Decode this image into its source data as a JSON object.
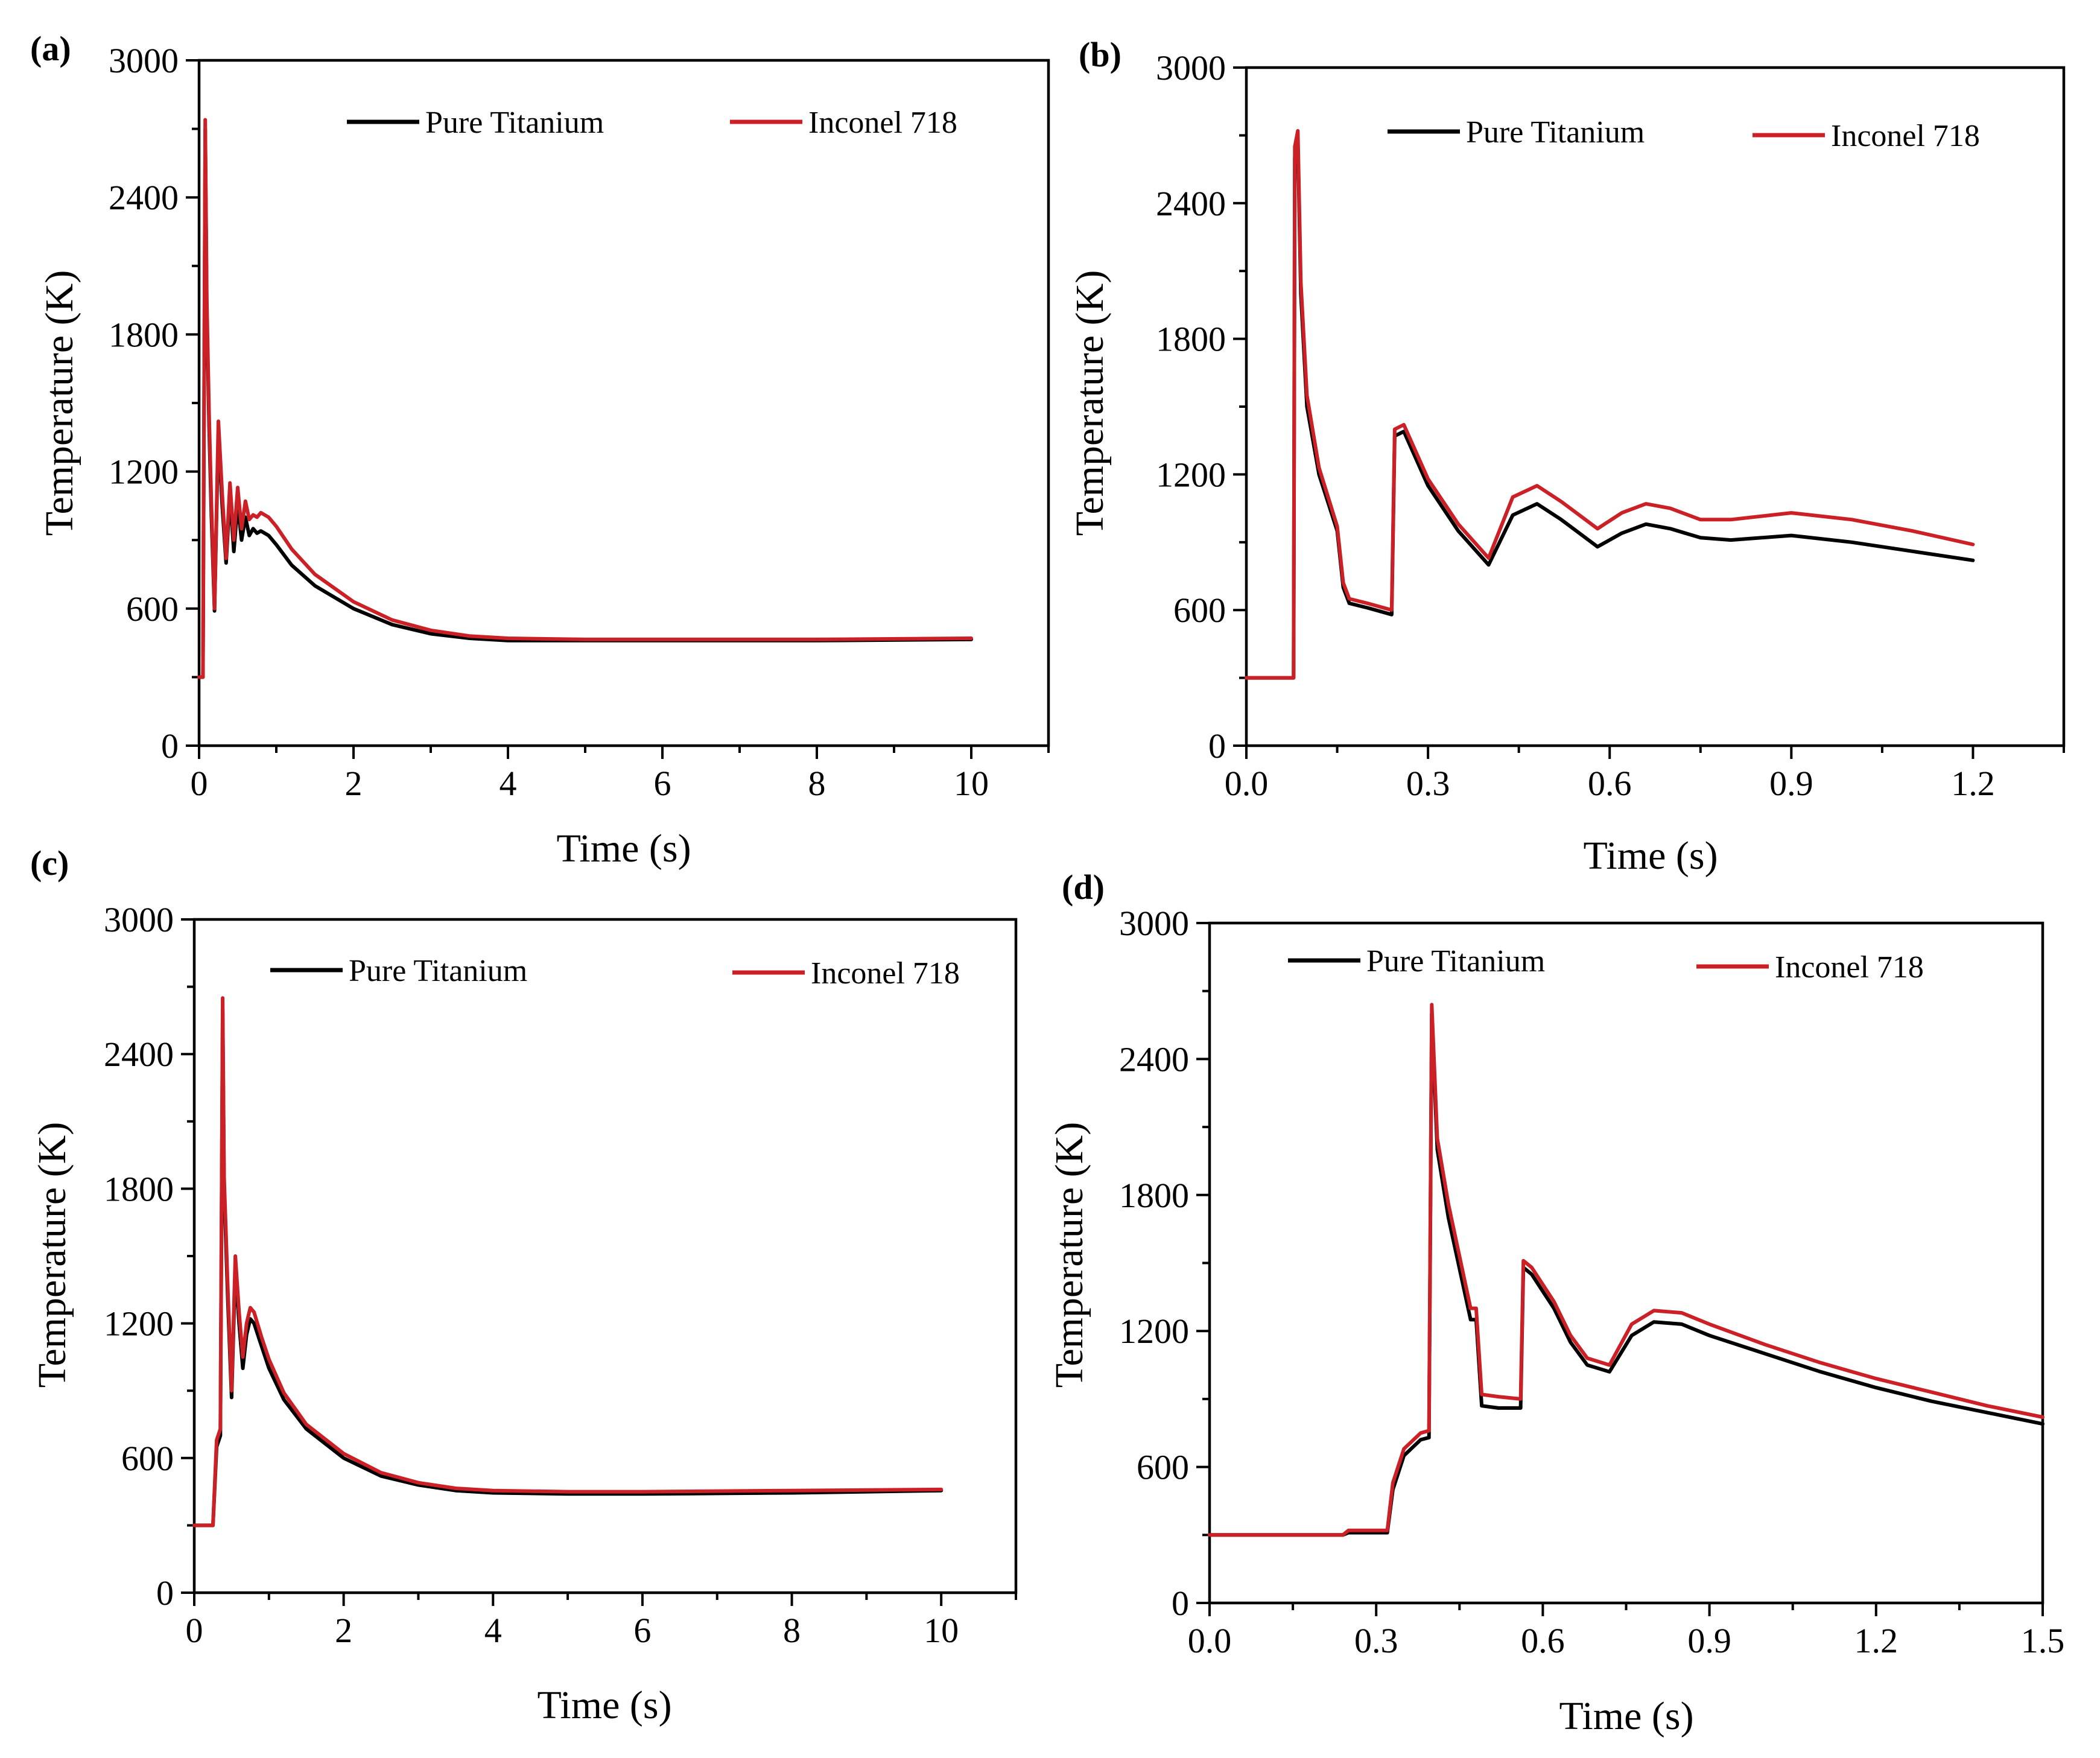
{
  "colors": {
    "pure_titanium": "#000000",
    "inconel_718": "#cc2027"
  },
  "chart_data": [
    {
      "panel": "(a)",
      "type": "line",
      "xlabel": "Time (s)",
      "ylabel": "Temperature (K)",
      "xlim": [
        0,
        11
      ],
      "ylim": [
        0,
        3000
      ],
      "xticks": [
        0,
        2,
        4,
        6,
        8,
        10
      ],
      "xtick_labels": [
        "0",
        "2",
        "4",
        "6",
        "8",
        "10"
      ],
      "yticks": [
        0,
        600,
        1200,
        1800,
        2400,
        3000
      ],
      "ytick_labels": [
        "0",
        "600",
        "1200",
        "1800",
        "2400",
        "3000"
      ],
      "legend": "top",
      "series": [
        {
          "name": "Pure Titanium",
          "color": "#000000",
          "x": [
            0,
            0.05,
            0.08,
            0.1,
            0.13,
            0.16,
            0.2,
            0.25,
            0.3,
            0.35,
            0.4,
            0.45,
            0.5,
            0.55,
            0.6,
            0.65,
            0.7,
            0.75,
            0.8,
            0.9,
            1.0,
            1.2,
            1.5,
            2.0,
            2.5,
            3.0,
            3.5,
            4.0,
            5.0,
            6.0,
            8.0,
            10.0
          ],
          "y": [
            300,
            300,
            2700,
            1900,
            1400,
            1000,
            590,
            1380,
            1050,
            800,
            1100,
            850,
            1060,
            900,
            1000,
            920,
            950,
            930,
            940,
            920,
            880,
            790,
            700,
            600,
            530,
            490,
            470,
            460,
            460,
            460,
            460,
            465
          ]
        },
        {
          "name": "Inconel 718",
          "color": "#cc2027",
          "x": [
            0,
            0.05,
            0.08,
            0.1,
            0.13,
            0.16,
            0.2,
            0.25,
            0.3,
            0.35,
            0.4,
            0.45,
            0.5,
            0.55,
            0.6,
            0.65,
            0.7,
            0.75,
            0.8,
            0.9,
            1.0,
            1.2,
            1.5,
            2.0,
            2.5,
            3.0,
            3.5,
            4.0,
            5.0,
            6.0,
            8.0,
            10.0
          ],
          "y": [
            300,
            300,
            2740,
            1950,
            1450,
            1050,
            600,
            1420,
            1100,
            820,
            1150,
            900,
            1130,
            950,
            1070,
            990,
            1010,
            1000,
            1020,
            1000,
            960,
            860,
            750,
            630,
            550,
            505,
            480,
            470,
            465,
            465,
            465,
            470
          ]
        }
      ]
    },
    {
      "panel": "(b)",
      "type": "line",
      "xlabel": "Time (s)",
      "ylabel": "Temperature (K)",
      "xlim": [
        0,
        1.35
      ],
      "ylim": [
        0,
        3000
      ],
      "xticks": [
        0,
        0.3,
        0.6,
        0.9,
        1.2
      ],
      "xtick_labels": [
        "0.0",
        "0.3",
        "0.6",
        "0.9",
        "1.2"
      ],
      "yticks": [
        0,
        600,
        1200,
        1800,
        2400,
        3000
      ],
      "ytick_labels": [
        "0",
        "600",
        "1200",
        "1800",
        "2400",
        "3000"
      ],
      "legend": "top",
      "series": [
        {
          "name": "Pure Titanium",
          "color": "#000000",
          "x": [
            0,
            0.078,
            0.08,
            0.085,
            0.09,
            0.1,
            0.12,
            0.15,
            0.16,
            0.17,
            0.2,
            0.24,
            0.245,
            0.26,
            0.3,
            0.35,
            0.4,
            0.44,
            0.48,
            0.52,
            0.58,
            0.62,
            0.66,
            0.7,
            0.75,
            0.8,
            0.9,
            1.0,
            1.1,
            1.2
          ],
          "y": [
            300,
            300,
            2600,
            2680,
            2000,
            1500,
            1200,
            950,
            700,
            630,
            610,
            580,
            1370,
            1390,
            1150,
            950,
            800,
            1020,
            1070,
            1000,
            880,
            940,
            980,
            960,
            920,
            910,
            930,
            900,
            860,
            820
          ]
        },
        {
          "name": "Inconel 718",
          "color": "#cc2027",
          "x": [
            0,
            0.078,
            0.08,
            0.085,
            0.09,
            0.1,
            0.12,
            0.15,
            0.16,
            0.17,
            0.2,
            0.24,
            0.245,
            0.26,
            0.3,
            0.35,
            0.4,
            0.44,
            0.48,
            0.52,
            0.58,
            0.62,
            0.66,
            0.7,
            0.75,
            0.8,
            0.9,
            1.0,
            1.1,
            1.2
          ],
          "y": [
            300,
            300,
            2650,
            2720,
            2050,
            1550,
            1230,
            970,
            720,
            650,
            630,
            600,
            1400,
            1420,
            1180,
            980,
            830,
            1100,
            1150,
            1080,
            960,
            1030,
            1070,
            1050,
            1000,
            1000,
            1030,
            1000,
            950,
            890
          ]
        }
      ]
    },
    {
      "panel": "(c)",
      "type": "line",
      "xlabel": "Time (s)",
      "ylabel": "Temperature (K)",
      "xlim": [
        0,
        11
      ],
      "ylim": [
        0,
        3000
      ],
      "xticks": [
        0,
        2,
        4,
        6,
        8,
        10
      ],
      "xtick_labels": [
        "0",
        "2",
        "4",
        "6",
        "8",
        "10"
      ],
      "yticks": [
        0,
        600,
        1200,
        1800,
        2400,
        3000
      ],
      "ytick_labels": [
        "0",
        "600",
        "1200",
        "1800",
        "2400",
        "3000"
      ],
      "legend": "top",
      "series": [
        {
          "name": "Pure Titanium",
          "color": "#000000",
          "x": [
            0,
            0.25,
            0.3,
            0.35,
            0.38,
            0.4,
            0.45,
            0.5,
            0.55,
            0.6,
            0.65,
            0.7,
            0.75,
            0.8,
            0.9,
            1.0,
            1.2,
            1.5,
            2.0,
            2.5,
            3.0,
            3.5,
            4.0,
            5.0,
            6.0,
            8.0,
            10.0
          ],
          "y": [
            300,
            300,
            650,
            700,
            2600,
            1800,
            1300,
            870,
            1450,
            1200,
            1000,
            1150,
            1220,
            1200,
            1100,
            1000,
            860,
            730,
            600,
            520,
            480,
            455,
            445,
            440,
            440,
            445,
            455
          ]
        },
        {
          "name": "Inconel 718",
          "color": "#cc2027",
          "x": [
            0,
            0.25,
            0.3,
            0.35,
            0.38,
            0.4,
            0.45,
            0.5,
            0.55,
            0.6,
            0.65,
            0.7,
            0.75,
            0.8,
            0.9,
            1.0,
            1.2,
            1.5,
            2.0,
            2.5,
            3.0,
            3.5,
            4.0,
            5.0,
            6.0,
            8.0,
            10.0
          ],
          "y": [
            300,
            300,
            680,
            730,
            2650,
            1850,
            1350,
            900,
            1500,
            1250,
            1050,
            1200,
            1270,
            1250,
            1140,
            1040,
            890,
            750,
            620,
            535,
            490,
            465,
            455,
            450,
            450,
            455,
            460
          ]
        }
      ]
    },
    {
      "panel": "(d)",
      "type": "line",
      "xlabel": "Time (s)",
      "ylabel": "Temperature (K)",
      "xlim": [
        0,
        1.5
      ],
      "ylim": [
        0,
        3000
      ],
      "xticks": [
        0,
        0.3,
        0.6,
        0.9,
        1.2,
        1.5
      ],
      "xtick_labels": [
        "0.0",
        "0.3",
        "0.6",
        "0.9",
        "1.2",
        "1.5"
      ],
      "yticks": [
        0,
        600,
        1200,
        1800,
        2400,
        3000
      ],
      "ytick_labels": [
        "0",
        "600",
        "1200",
        "1800",
        "2400",
        "3000"
      ],
      "legend": "top",
      "series": [
        {
          "name": "Pure Titanium",
          "color": "#000000",
          "x": [
            0,
            0.24,
            0.25,
            0.32,
            0.33,
            0.35,
            0.38,
            0.395,
            0.4,
            0.41,
            0.43,
            0.47,
            0.48,
            0.49,
            0.52,
            0.56,
            0.565,
            0.58,
            0.62,
            0.65,
            0.68,
            0.72,
            0.76,
            0.8,
            0.85,
            0.9,
            1.0,
            1.1,
            1.2,
            1.3,
            1.4,
            1.5
          ],
          "y": [
            300,
            300,
            310,
            310,
            500,
            650,
            720,
            730,
            2600,
            2000,
            1700,
            1250,
            1250,
            870,
            860,
            860,
            1480,
            1450,
            1300,
            1150,
            1050,
            1020,
            1180,
            1240,
            1230,
            1180,
            1100,
            1020,
            950,
            890,
            840,
            790
          ]
        },
        {
          "name": "Inconel 718",
          "color": "#cc2027",
          "x": [
            0,
            0.24,
            0.25,
            0.32,
            0.33,
            0.35,
            0.38,
            0.395,
            0.4,
            0.41,
            0.43,
            0.47,
            0.48,
            0.49,
            0.52,
            0.56,
            0.565,
            0.58,
            0.62,
            0.65,
            0.68,
            0.72,
            0.76,
            0.8,
            0.85,
            0.9,
            1.0,
            1.1,
            1.2,
            1.3,
            1.4,
            1.5
          ],
          "y": [
            300,
            300,
            320,
            320,
            530,
            680,
            750,
            760,
            2640,
            2050,
            1760,
            1300,
            1300,
            920,
            910,
            900,
            1510,
            1480,
            1330,
            1180,
            1080,
            1050,
            1230,
            1290,
            1280,
            1230,
            1140,
            1060,
            990,
            930,
            870,
            820
          ]
        }
      ]
    }
  ]
}
